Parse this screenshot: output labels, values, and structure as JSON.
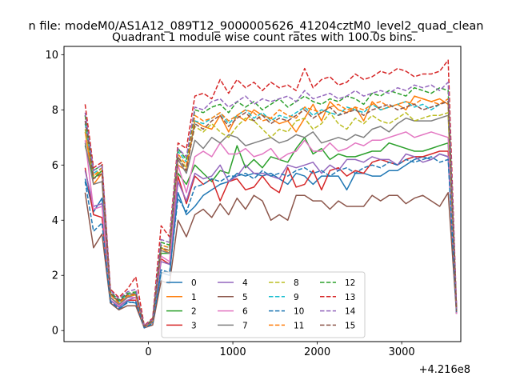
{
  "figure": {
    "suptitle": "n file: modeM0/AS1A12_089T12_9000005626_41204cztM0_level2_quad_clean",
    "axes_offset_label": "+4.216e8"
  },
  "chart_data": {
    "type": "line",
    "title": "Quadrant 1 module wise count rates with 100.0s bins.",
    "xlabel": "",
    "ylabel": "",
    "xlim": [
      -1000,
      3700
    ],
    "ylim": [
      -0.4,
      10.3
    ],
    "x_offset": 421600000,
    "xticks": [
      0,
      1000,
      2000,
      3000
    ],
    "xtick_labels": [
      "0",
      "1000",
      "2000",
      "3000"
    ],
    "yticks": [
      0,
      2,
      4,
      6,
      8,
      10
    ],
    "ytick_labels": [
      "0",
      "2",
      "4",
      "6",
      "8",
      "10"
    ],
    "grid": false,
    "legend": {
      "placement": "lower center",
      "columns": 4
    },
    "x": [
      -750,
      -650,
      -550,
      -450,
      -350,
      -250,
      -150,
      -50,
      50,
      150,
      250,
      350,
      450,
      550,
      650,
      750,
      850,
      950,
      1050,
      1150,
      1250,
      1350,
      1450,
      1550,
      1650,
      1750,
      1850,
      1950,
      2050,
      2150,
      2250,
      2350,
      2450,
      2550,
      2650,
      2750,
      2850,
      2950,
      3050,
      3150,
      3250,
      3350,
      3450,
      3550,
      3650
    ],
    "series": [
      {
        "name": "0",
        "color": "#1f77b4",
        "dash": "solid",
        "values": [
          5.5,
          4.3,
          4.8,
          1.0,
          0.75,
          1.05,
          1.0,
          0.1,
          0.3,
          2.1,
          2.0,
          5.0,
          4.2,
          4.5,
          4.9,
          5.1,
          5.3,
          5.4,
          5.7,
          5.6,
          5.7,
          5.6,
          5.7,
          5.5,
          5.3,
          5.7,
          5.6,
          5.3,
          5.6,
          5.6,
          5.6,
          5.1,
          5.7,
          5.7,
          5.6,
          5.6,
          5.8,
          5.8,
          6.0,
          6.2,
          6.3,
          6.2,
          6.4,
          6.3,
          0.8
        ]
      },
      {
        "name": "1",
        "color": "#ff7f0e",
        "dash": "solid",
        "values": [
          7.2,
          5.3,
          5.7,
          1.3,
          1.05,
          1.2,
          1.35,
          0.15,
          0.35,
          3.0,
          2.8,
          6.0,
          5.8,
          7.6,
          7.4,
          7.3,
          7.8,
          7.2,
          7.8,
          7.6,
          8.0,
          7.8,
          7.7,
          7.5,
          7.6,
          7.2,
          7.7,
          8.2,
          7.6,
          8.3,
          8.0,
          7.9,
          8.1,
          7.6,
          8.3,
          8.0,
          8.1,
          8.2,
          8.0,
          8.5,
          8.4,
          8.3,
          8.4,
          8.2,
          0.7
        ]
      },
      {
        "name": "2",
        "color": "#2ca02c",
        "dash": "solid",
        "values": [
          6.7,
          5.5,
          5.8,
          1.2,
          0.9,
          1.2,
          1.2,
          0.1,
          0.3,
          2.8,
          2.8,
          5.7,
          5.3,
          6.0,
          5.7,
          5.4,
          5.8,
          5.7,
          6.7,
          5.9,
          6.2,
          5.9,
          6.3,
          6.2,
          6.1,
          6.6,
          7.0,
          6.4,
          6.6,
          6.2,
          6.4,
          6.3,
          6.3,
          6.4,
          6.5,
          6.5,
          6.8,
          6.7,
          6.6,
          6.5,
          6.5,
          6.6,
          6.7,
          6.8,
          0.6
        ]
      },
      {
        "name": "3",
        "color": "#d62728",
        "dash": "solid",
        "values": [
          5.9,
          4.2,
          4.1,
          1.1,
          0.85,
          1.1,
          1.1,
          0.1,
          0.3,
          2.6,
          2.4,
          5.6,
          4.6,
          5.6,
          5.3,
          5.5,
          4.7,
          5.4,
          5.5,
          5.1,
          5.2,
          5.6,
          5.2,
          5.0,
          5.9,
          5.2,
          5.3,
          5.8,
          5.1,
          5.8,
          5.9,
          5.6,
          5.8,
          5.7,
          6.1,
          6.2,
          6.1,
          6.0,
          6.2,
          6.3,
          6.3,
          6.4,
          6.5,
          6.5,
          0.6
        ]
      },
      {
        "name": "4",
        "color": "#9467bd",
        "dash": "solid",
        "values": [
          5.8,
          4.5,
          4.6,
          1.1,
          0.85,
          1.1,
          1.2,
          0.12,
          0.3,
          2.5,
          2.4,
          5.4,
          4.7,
          5.7,
          5.5,
          5.6,
          6.0,
          5.4,
          5.6,
          6.0,
          5.7,
          5.7,
          5.6,
          5.5,
          6.0,
          5.9,
          6.0,
          6.1,
          5.7,
          6.0,
          5.8,
          6.2,
          6.2,
          6.1,
          6.3,
          6.2,
          6.2,
          6.0,
          6.4,
          6.3,
          6.1,
          6.2,
          6.4,
          6.3,
          0.6
        ]
      },
      {
        "name": "5",
        "color": "#8c564b",
        "dash": "solid",
        "values": [
          5.0,
          3.0,
          3.5,
          1.0,
          0.75,
          0.9,
          0.9,
          0.1,
          0.2,
          1.8,
          1.7,
          4.0,
          3.4,
          4.2,
          4.4,
          4.1,
          4.6,
          4.2,
          4.8,
          4.4,
          4.9,
          4.7,
          4.0,
          4.2,
          4.0,
          4.9,
          4.9,
          4.7,
          4.7,
          4.4,
          4.7,
          4.5,
          4.5,
          4.5,
          4.9,
          4.7,
          4.9,
          4.9,
          4.6,
          4.8,
          4.9,
          4.7,
          4.5,
          5.0,
          0.6
        ]
      },
      {
        "name": "6",
        "color": "#e377c2",
        "dash": "solid",
        "values": [
          6.9,
          4.4,
          4.5,
          1.2,
          0.9,
          1.2,
          1.2,
          0.1,
          0.3,
          2.7,
          2.5,
          6.0,
          5.0,
          6.3,
          6.5,
          6.3,
          6.8,
          6.4,
          6.4,
          6.6,
          6.3,
          6.4,
          6.6,
          6.2,
          6.4,
          6.5,
          6.9,
          6.5,
          6.5,
          6.8,
          6.5,
          6.6,
          6.8,
          6.7,
          6.9,
          6.9,
          7.0,
          7.1,
          7.2,
          7.0,
          7.1,
          7.2,
          7.1,
          7.0,
          0.6
        ]
      },
      {
        "name": "7",
        "color": "#7f7f7f",
        "dash": "solid",
        "values": [
          6.8,
          5.3,
          5.4,
          1.2,
          0.95,
          1.2,
          1.3,
          0.12,
          0.3,
          2.9,
          2.8,
          6.2,
          5.7,
          6.9,
          6.6,
          7.0,
          6.8,
          7.1,
          7.0,
          6.7,
          6.8,
          6.9,
          7.0,
          6.8,
          6.9,
          7.1,
          7.0,
          7.2,
          6.8,
          6.9,
          7.0,
          6.9,
          7.1,
          7.0,
          7.3,
          7.4,
          7.2,
          7.5,
          7.7,
          7.6,
          7.6,
          7.6,
          7.7,
          7.8,
          0.7
        ]
      },
      {
        "name": "8",
        "color": "#bcbd22",
        "dash": "dashed",
        "values": [
          7.3,
          5.6,
          5.8,
          1.3,
          1.0,
          1.25,
          1.3,
          0.14,
          0.35,
          3.0,
          2.9,
          6.3,
          5.9,
          7.4,
          7.2,
          7.5,
          7.2,
          7.0,
          7.4,
          7.7,
          7.6,
          7.3,
          7.0,
          7.3,
          7.2,
          7.6,
          7.7,
          7.3,
          7.5,
          7.9,
          7.5,
          7.3,
          7.7,
          7.5,
          7.8,
          7.6,
          7.5,
          7.7,
          7.9,
          7.6,
          7.7,
          7.8,
          7.8,
          7.9,
          0.7
        ]
      },
      {
        "name": "9",
        "color": "#17becf",
        "dash": "dashed",
        "values": [
          7.5,
          5.7,
          5.9,
          1.35,
          1.05,
          1.3,
          1.35,
          0.15,
          0.35,
          3.1,
          3.0,
          6.5,
          6.1,
          7.6,
          7.5,
          7.7,
          7.9,
          7.5,
          7.8,
          8.0,
          7.7,
          7.9,
          7.6,
          7.8,
          7.7,
          7.9,
          8.1,
          7.8,
          8.0,
          7.9,
          7.8,
          8.1,
          8.0,
          7.9,
          8.2,
          8.0,
          8.1,
          8.2,
          8.3,
          8.1,
          8.2,
          8.0,
          8.2,
          8.3,
          0.7
        ]
      },
      {
        "name": "10",
        "color": "#1f77b4",
        "dash": "dashed",
        "values": [
          5.4,
          3.6,
          3.9,
          1.05,
          0.8,
          1.0,
          1.05,
          0.1,
          0.25,
          2.2,
          2.1,
          4.8,
          4.3,
          5.2,
          5.3,
          5.5,
          5.4,
          5.6,
          5.6,
          5.7,
          5.5,
          5.8,
          5.6,
          5.7,
          5.6,
          5.8,
          5.9,
          5.7,
          5.8,
          5.6,
          5.8,
          5.9,
          5.7,
          5.9,
          6.0,
          5.9,
          6.1,
          6.0,
          6.2,
          6.1,
          6.2,
          6.3,
          6.1,
          6.2,
          0.6
        ]
      },
      {
        "name": "11",
        "color": "#ff7f0e",
        "dash": "dashed",
        "values": [
          7.8,
          5.6,
          5.9,
          1.3,
          1.0,
          1.25,
          1.3,
          0.14,
          0.35,
          3.1,
          3.0,
          6.4,
          6.0,
          7.8,
          7.6,
          7.7,
          7.9,
          7.6,
          7.8,
          8.0,
          7.9,
          7.6,
          7.7,
          8.0,
          7.8,
          7.7,
          8.1,
          8.0,
          7.9,
          8.1,
          8.2,
          8.0,
          8.1,
          8.0,
          8.2,
          8.3,
          8.1,
          8.2,
          8.3,
          8.2,
          8.4,
          8.3,
          8.2,
          8.4,
          0.7
        ]
      },
      {
        "name": "12",
        "color": "#2ca02c",
        "dash": "dashed",
        "values": [
          7.8,
          5.8,
          6.0,
          1.4,
          1.1,
          1.35,
          1.4,
          0.16,
          0.4,
          3.2,
          3.1,
          6.6,
          6.2,
          8.0,
          7.9,
          8.1,
          8.2,
          7.9,
          8.3,
          8.1,
          8.3,
          8.0,
          8.2,
          8.4,
          8.1,
          8.3,
          8.5,
          8.3,
          8.2,
          8.4,
          8.3,
          8.5,
          8.4,
          8.2,
          8.6,
          8.5,
          8.7,
          8.6,
          8.5,
          8.8,
          8.7,
          8.6,
          8.8,
          8.7,
          0.8
        ]
      },
      {
        "name": "13",
        "color": "#d62728",
        "dash": "dashed",
        "values": [
          8.2,
          5.9,
          6.1,
          1.5,
          1.2,
          1.5,
          1.95,
          0.18,
          0.45,
          3.8,
          3.4,
          6.8,
          6.6,
          8.5,
          8.6,
          8.4,
          9.1,
          8.6,
          9.1,
          8.8,
          9.0,
          8.7,
          9.0,
          8.8,
          8.9,
          8.7,
          9.5,
          8.8,
          9.1,
          9.2,
          8.9,
          9.0,
          9.3,
          9.1,
          9.2,
          9.4,
          9.3,
          9.5,
          9.4,
          9.2,
          9.3,
          9.3,
          9.4,
          9.8,
          0.8
        ]
      },
      {
        "name": "14",
        "color": "#9467bd",
        "dash": "dashed",
        "values": [
          7.9,
          5.8,
          6.0,
          1.45,
          1.15,
          1.4,
          1.5,
          0.16,
          0.4,
          3.3,
          3.2,
          6.6,
          6.3,
          8.1,
          8.0,
          8.3,
          8.4,
          8.1,
          8.3,
          8.5,
          8.2,
          8.4,
          8.3,
          8.4,
          8.5,
          8.3,
          8.7,
          8.4,
          8.5,
          8.6,
          8.4,
          8.5,
          8.7,
          8.5,
          8.6,
          8.7,
          8.6,
          8.8,
          8.7,
          8.9,
          8.8,
          8.9,
          8.7,
          9.0,
          0.8
        ]
      },
      {
        "name": "15",
        "color": "#8c564b",
        "dash": "dashed",
        "values": [
          7.6,
          5.5,
          5.7,
          1.35,
          1.05,
          1.3,
          1.35,
          0.15,
          0.35,
          3.0,
          2.9,
          6.3,
          5.8,
          7.5,
          7.3,
          7.6,
          7.8,
          7.4,
          7.7,
          7.9,
          7.6,
          7.8,
          7.5,
          7.7,
          7.6,
          7.8,
          8.0,
          7.7,
          7.9,
          8.1,
          7.8,
          7.9,
          8.0,
          7.8,
          8.0,
          8.1,
          8.2,
          8.0,
          8.1,
          8.2,
          8.0,
          8.1,
          8.2,
          8.3,
          0.7
        ]
      }
    ]
  }
}
